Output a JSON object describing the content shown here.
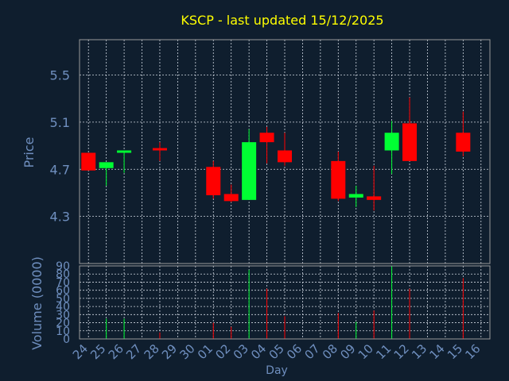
{
  "chart_data": {
    "type": "candlestick",
    "title": "KSCP - last updated 15/12/2025",
    "xlabel": "Day",
    "ylabel": "Price",
    "volume_label": "Volume (0000)",
    "categories": [
      "24",
      "25",
      "26",
      "27",
      "28",
      "29",
      "30",
      "01",
      "02",
      "03",
      "04",
      "05",
      "06",
      "07",
      "08",
      "09",
      "10",
      "11",
      "12",
      "13",
      "14",
      "15",
      "16"
    ],
    "price_ticks": [
      "4.3",
      "4.7",
      "5.1",
      "5.5"
    ],
    "price_ylim": [
      3.9,
      5.8
    ],
    "volume_ticks": [
      "0",
      "10",
      "20",
      "30",
      "40",
      "50",
      "60",
      "70",
      "80",
      "90"
    ],
    "volume_ylim": [
      0,
      90
    ],
    "grid": true,
    "colors": {
      "background": "#0f1e2e",
      "up": "#00ff33",
      "down": "#ff0000",
      "title": "#ffff00",
      "axis_text": "#6f8fbf",
      "axis_line": "#999999",
      "grid": "#cfd6e0"
    },
    "candles": [
      {
        "day": "24",
        "open": 4.84,
        "high": 4.84,
        "low": 4.69,
        "close": 4.69
      },
      {
        "day": "25",
        "open": 4.71,
        "high": 4.76,
        "low": 4.56,
        "close": 4.76
      },
      {
        "day": "26",
        "open": 4.84,
        "high": 4.86,
        "low": 4.67,
        "close": 4.86
      },
      {
        "day": "28",
        "open": 4.88,
        "high": 4.93,
        "low": 4.77,
        "close": 4.86
      },
      {
        "day": "01",
        "open": 4.72,
        "high": 4.77,
        "low": 4.45,
        "close": 4.48
      },
      {
        "day": "02",
        "open": 4.49,
        "high": 4.57,
        "low": 4.42,
        "close": 4.43
      },
      {
        "day": "03",
        "open": 4.44,
        "high": 5.04,
        "low": 4.44,
        "close": 4.93
      },
      {
        "day": "04",
        "open": 5.01,
        "high": 5.06,
        "low": 4.75,
        "close": 4.93
      },
      {
        "day": "05",
        "open": 4.86,
        "high": 5.01,
        "low": 4.73,
        "close": 4.76
      },
      {
        "day": "08",
        "open": 4.77,
        "high": 4.85,
        "low": 4.43,
        "close": 4.45
      },
      {
        "day": "09",
        "open": 4.46,
        "high": 4.56,
        "low": 4.38,
        "close": 4.49
      },
      {
        "day": "10",
        "open": 4.47,
        "high": 4.73,
        "low": 4.35,
        "close": 4.44
      },
      {
        "day": "11",
        "open": 4.86,
        "high": 5.11,
        "low": 4.66,
        "close": 5.01
      },
      {
        "day": "12",
        "open": 5.09,
        "high": 5.31,
        "low": 4.77,
        "close": 4.77
      },
      {
        "day": "15",
        "open": 5.01,
        "high": 5.19,
        "low": 4.81,
        "close": 4.85
      }
    ],
    "volumes": [
      {
        "day": "25",
        "value": 25,
        "dir": "up"
      },
      {
        "day": "26",
        "value": 25,
        "dir": "up"
      },
      {
        "day": "28",
        "value": 8,
        "dir": "down"
      },
      {
        "day": "01",
        "value": 20,
        "dir": "down"
      },
      {
        "day": "02",
        "value": 15,
        "dir": "down"
      },
      {
        "day": "03",
        "value": 85,
        "dir": "up"
      },
      {
        "day": "04",
        "value": 62,
        "dir": "down"
      },
      {
        "day": "05",
        "value": 28,
        "dir": "down"
      },
      {
        "day": "08",
        "value": 32,
        "dir": "down"
      },
      {
        "day": "09",
        "value": 21,
        "dir": "up"
      },
      {
        "day": "10",
        "value": 35,
        "dir": "down"
      },
      {
        "day": "11",
        "value": 90,
        "dir": "up"
      },
      {
        "day": "12",
        "value": 62,
        "dir": "down"
      },
      {
        "day": "15",
        "value": 75,
        "dir": "down"
      }
    ]
  }
}
